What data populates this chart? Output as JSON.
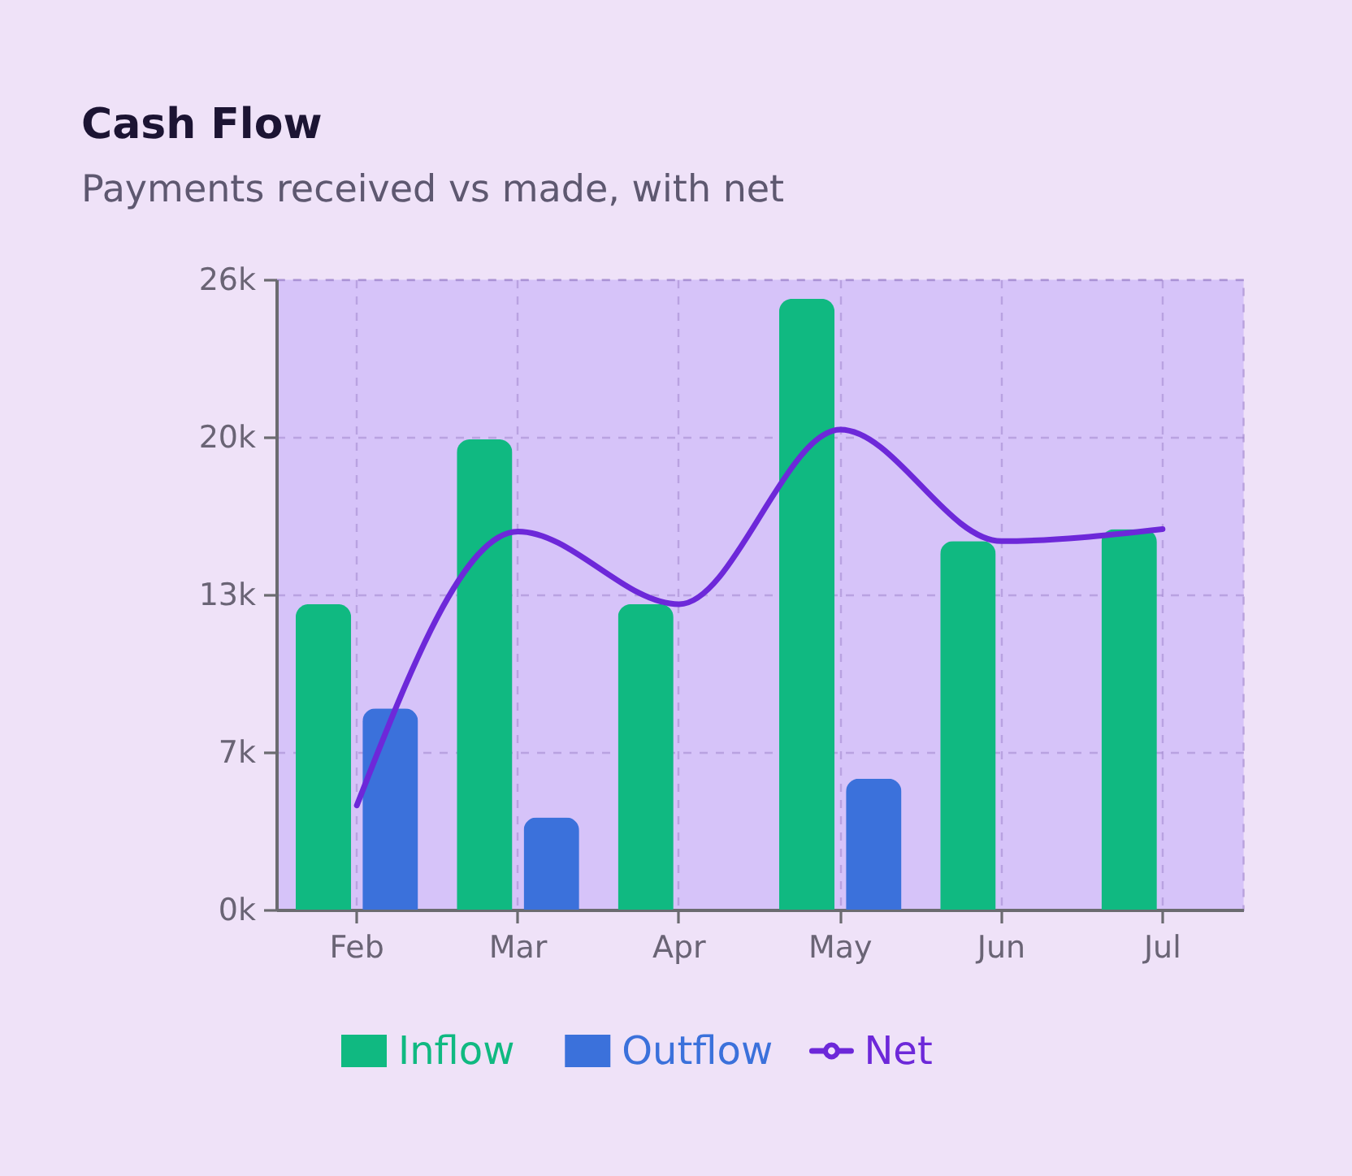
{
  "chart_data": {
    "type": "bar",
    "title": "Cash Flow",
    "subtitle": "Payments received vs made, with net",
    "categories": [
      "Feb",
      "Mar",
      "Apr",
      "May",
      "Jun",
      "Jul"
    ],
    "series": [
      {
        "name": "Inflow",
        "color": "#10b981",
        "values": [
          12600,
          19400,
          12600,
          25200,
          15200,
          15700
        ]
      },
      {
        "name": "Outflow",
        "color": "#3b71db",
        "values": [
          8300,
          3800,
          null,
          5400,
          null,
          null
        ]
      },
      {
        "name": "Net",
        "type": "line",
        "color": "#6d28d9",
        "values": [
          4300,
          15600,
          12600,
          19800,
          15200,
          15700
        ]
      }
    ],
    "ylim": [
      0,
      26000
    ],
    "yticks": [
      {
        "value": 0,
        "label": "0k"
      },
      {
        "value": 6500,
        "label": "7k"
      },
      {
        "value": 13000,
        "label": "13k"
      },
      {
        "value": 19500,
        "label": "20k"
      },
      {
        "value": 26000,
        "label": "26k"
      }
    ],
    "grid": true,
    "legend": "bottom"
  }
}
